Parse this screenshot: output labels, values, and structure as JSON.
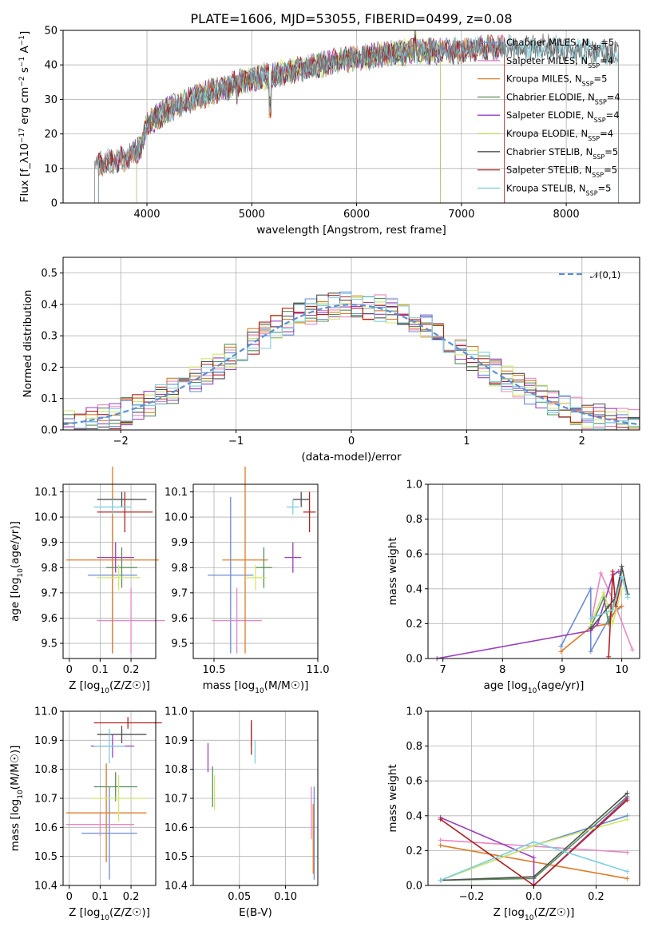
{
  "figure_title": "PLATE=1606, MJD=53055, FIBERID=0499, z=0.08",
  "colors": {
    "Chabrier MILES": "#6a8bd8",
    "Salpeter MILES": "#e887c2",
    "Kroupa MILES": "#e07b27",
    "Chabrier ELODIE": "#5a8f5a",
    "Salpeter ELODIE": "#9b3fbf",
    "Kroupa ELODIE": "#cfe86a",
    "Chabrier STELIB": "#505050",
    "Salpeter STELIB": "#b22222",
    "Kroupa STELIB": "#7fd0e0",
    "normal": "#5b8fd6"
  },
  "chart_data": [
    {
      "id": "spectrum",
      "type": "line",
      "title": "PLATE=1606, MJD=53055, FIBERID=0499, z=0.08",
      "xlabel": "wavelength [Angstrom, rest frame]",
      "ylabel": "Flux [f_λ 10^-17 erg cm^-2 s^-1 A^-1]",
      "xlim": [
        3200,
        8700
      ],
      "ylim": [
        0,
        50
      ],
      "xticks": [
        4000,
        5000,
        6000,
        7000,
        8000
      ],
      "yticks": [
        0,
        10,
        20,
        30,
        40,
        50
      ],
      "legend_position": "right",
      "legend": [
        "Chabrier MILES, N_SSP=5",
        "Salpeter MILES, N_SSP=4",
        "Kroupa MILES, N_SSP=5",
        "Chabrier ELODIE, N_SSP=4",
        "Salpeter ELODIE, N_SSP=4",
        "Kroupa ELODIE, N_SSP=4",
        "Chabrier STELIB, N_SSP=5",
        "Salpeter STELIB, N_SSP=5",
        "Kroupa STELIB, N_SSP=5"
      ],
      "continuum": [
        [
          3500,
          11
        ],
        [
          3800,
          13
        ],
        [
          3950,
          16
        ],
        [
          4000,
          23
        ],
        [
          4200,
          27
        ],
        [
          4500,
          31
        ],
        [
          4800,
          34
        ],
        [
          5000,
          36
        ],
        [
          5200,
          37
        ],
        [
          5500,
          39
        ],
        [
          5800,
          41
        ],
        [
          6000,
          42
        ],
        [
          6300,
          43
        ],
        [
          6600,
          44
        ],
        [
          6900,
          44
        ],
        [
          7200,
          45
        ],
        [
          7500,
          45
        ],
        [
          7800,
          45
        ],
        [
          8200,
          44
        ],
        [
          8500,
          43
        ]
      ],
      "coverage": {
        "Chabrier MILES": [
          3540,
          7410
        ],
        "Salpeter MILES": [
          3540,
          7410
        ],
        "Kroupa MILES": [
          3540,
          7410
        ],
        "Chabrier ELODIE": [
          3900,
          6800
        ],
        "Salpeter ELODIE": [
          3900,
          6800
        ],
        "Kroupa ELODIE": [
          3900,
          6800
        ],
        "Chabrier STELIB": [
          3540,
          8500
        ],
        "Salpeter STELIB": [
          3540,
          7410
        ],
        "Kroupa STELIB": [
          3540,
          8500
        ]
      },
      "data_line": [
        3500,
        8500
      ]
    },
    {
      "id": "residuals",
      "type": "histogram",
      "xlabel": "(data-model)/error",
      "ylabel": "Normed distribution",
      "xlim": [
        -2.5,
        2.5
      ],
      "ylim": [
        0,
        0.55
      ],
      "xticks": [
        -2,
        -1,
        0,
        1,
        2
      ],
      "yticks": [
        0.0,
        0.1,
        0.2,
        0.3,
        0.4,
        0.5
      ],
      "legend": [
        "𝒩(0,1)"
      ],
      "legend_position": "upper right",
      "bin_width": 0.1,
      "series": [
        {
          "name": "Chabrier MILES",
          "jitter_seed": 1
        },
        {
          "name": "Salpeter MILES",
          "jitter_seed": 2
        },
        {
          "name": "Kroupa MILES",
          "jitter_seed": 3
        },
        {
          "name": "Chabrier ELODIE",
          "jitter_seed": 4
        },
        {
          "name": "Salpeter ELODIE",
          "jitter_seed": 5
        },
        {
          "name": "Kroupa ELODIE",
          "jitter_seed": 6
        },
        {
          "name": "Chabrier STELIB",
          "jitter_seed": 7
        },
        {
          "name": "Salpeter STELIB",
          "jitter_seed": 8
        },
        {
          "name": "Kroupa STELIB",
          "jitter_seed": 9
        }
      ]
    },
    {
      "id": "age_vs_Z",
      "type": "errorbar",
      "xlabel": "Z [log10(Z/Z☉)]",
      "ylabel": "age [log10(age/yr)]",
      "xlim": [
        -0.02,
        0.28
      ],
      "ylim": [
        9.44,
        10.13
      ],
      "xticks": [
        0.0,
        0.1,
        0.2
      ],
      "yticks": [
        9.5,
        9.6,
        9.7,
        9.8,
        9.9,
        10.0,
        10.1
      ],
      "points": [
        {
          "s": "Chabrier MILES",
          "x": 0.14,
          "xerr": 0.08,
          "y": 9.77,
          "yerr": 0.31
        },
        {
          "s": "Salpeter MILES",
          "x": 0.2,
          "xerr": 0.11,
          "y": 9.59,
          "yerr": 0.13
        },
        {
          "s": "Kroupa MILES",
          "x": 0.14,
          "xerr": 0.15,
          "y": 9.83,
          "yerr": 0.37
        },
        {
          "s": "Chabrier ELODIE",
          "x": 0.17,
          "xerr": 0.05,
          "y": 9.8,
          "yerr": 0.08
        },
        {
          "s": "Salpeter ELODIE",
          "x": 0.15,
          "xerr": 0.06,
          "y": 9.84,
          "yerr": 0.06
        },
        {
          "s": "Kroupa ELODIE",
          "x": 0.16,
          "xerr": 0.07,
          "y": 9.76,
          "yerr": 0.05
        },
        {
          "s": "Chabrier STELIB",
          "x": 0.17,
          "xerr": 0.08,
          "y": 10.07,
          "yerr": 0.03
        },
        {
          "s": "Salpeter STELIB",
          "x": 0.18,
          "xerr": 0.09,
          "y": 10.02,
          "yerr": 0.08
        },
        {
          "s": "Kroupa STELIB",
          "x": 0.14,
          "xerr": 0.06,
          "y": 10.04,
          "yerr": 0.03
        }
      ]
    },
    {
      "id": "age_vs_mass",
      "type": "errorbar",
      "xlabel": "mass [log10(M/M☉)]",
      "ylabel": "",
      "xlim": [
        10.4,
        11.0
      ],
      "ylim": [
        9.44,
        10.13
      ],
      "xticks": [
        10.5,
        11.0
      ],
      "xticklabels": [
        "10.5",
        "11.0"
      ],
      "yticks": [
        9.5,
        9.6,
        9.7,
        9.8,
        9.9,
        10.0,
        10.1
      ],
      "points": [
        {
          "s": "Chabrier MILES",
          "x": 10.58,
          "xerr": 0.11,
          "y": 9.77,
          "yerr": 0.31
        },
        {
          "s": "Salpeter MILES",
          "x": 10.61,
          "xerr": 0.12,
          "y": 9.59,
          "yerr": 0.13
        },
        {
          "s": "Kroupa MILES",
          "x": 10.65,
          "xerr": 0.11,
          "y": 9.83,
          "yerr": 0.37
        },
        {
          "s": "Chabrier ELODIE",
          "x": 10.74,
          "xerr": 0.04,
          "y": 9.8,
          "yerr": 0.08
        },
        {
          "s": "Salpeter ELODIE",
          "x": 10.88,
          "xerr": 0.04,
          "y": 9.84,
          "yerr": 0.06
        },
        {
          "s": "Kroupa ELODIE",
          "x": 10.7,
          "xerr": 0.05,
          "y": 9.76,
          "yerr": 0.05
        },
        {
          "s": "Chabrier STELIB",
          "x": 10.92,
          "xerr": 0.04,
          "y": 10.07,
          "yerr": 0.03
        },
        {
          "s": "Salpeter STELIB",
          "x": 10.96,
          "xerr": 0.03,
          "y": 10.02,
          "yerr": 0.08
        },
        {
          "s": "Kroupa STELIB",
          "x": 10.88,
          "xerr": 0.03,
          "y": 10.04,
          "yerr": 0.03
        }
      ]
    },
    {
      "id": "massweight_vs_age",
      "type": "line",
      "xlabel": "age [log10(age/yr)]",
      "ylabel": "mass weight",
      "xlim": [
        6.75,
        10.3
      ],
      "ylim": [
        0,
        1.0
      ],
      "xticks": [
        7,
        8,
        9,
        10
      ],
      "yticks": [
        0.0,
        0.2,
        0.4,
        0.6,
        0.8,
        1.0
      ],
      "series": [
        {
          "name": "Chabrier MILES",
          "x": [
            8.98,
            9.48,
            9.48,
            9.8,
            10.0
          ],
          "y": [
            0.07,
            0.4,
            0.04,
            0.24,
            0.3
          ]
        },
        {
          "name": "Salpeter MILES",
          "x": [
            9.48,
            9.65,
            9.9,
            10.18
          ],
          "y": [
            0.2,
            0.49,
            0.3,
            0.05
          ]
        },
        {
          "name": "Kroupa MILES",
          "x": [
            8.98,
            9.48,
            9.78,
            9.9,
            10.0
          ],
          "y": [
            0.04,
            0.18,
            0.2,
            0.28,
            0.3
          ]
        },
        {
          "name": "Chabrier ELODIE",
          "x": [
            9.48,
            9.7,
            9.78,
            10.0
          ],
          "y": [
            0.18,
            0.35,
            0.2,
            0.5
          ]
        },
        {
          "name": "Salpeter ELODIE",
          "x": [
            6.9,
            9.48,
            9.6,
            9.85,
            9.95
          ],
          "y": [
            0.0,
            0.16,
            0.2,
            0.48,
            0.5
          ]
        },
        {
          "name": "Kroupa ELODIE",
          "x": [
            9.48,
            9.7,
            9.85,
            10.0
          ],
          "y": [
            0.2,
            0.38,
            0.2,
            0.4
          ]
        },
        {
          "name": "Chabrier STELIB",
          "x": [
            9.48,
            9.78,
            9.9,
            10.0,
            10.1
          ],
          "y": [
            0.17,
            0.3,
            0.35,
            0.53,
            0.37
          ]
        },
        {
          "name": "Salpeter STELIB",
          "x": [
            9.78,
            9.85,
            9.9,
            10.0
          ],
          "y": [
            0.01,
            0.5,
            0.3,
            0.45
          ]
        },
        {
          "name": "Kroupa STELIB",
          "x": [
            9.48,
            9.85,
            10.0,
            10.1
          ],
          "y": [
            0.23,
            0.28,
            0.47,
            0.35
          ]
        }
      ]
    },
    {
      "id": "mass_vs_Z",
      "type": "errorbar",
      "xlabel": "Z [log10(Z/Z☉)]",
      "ylabel": "mass [log10(M/M☉)]",
      "xlim": [
        -0.02,
        0.28
      ],
      "ylim": [
        10.4,
        11.0
      ],
      "xticks": [
        0.0,
        0.1,
        0.2
      ],
      "yticks": [
        10.4,
        10.5,
        10.6,
        10.7,
        10.8,
        10.9,
        11.0
      ],
      "points": [
        {
          "s": "Chabrier MILES",
          "x": 0.13,
          "xerr": 0.09,
          "y": 10.58,
          "yerr": 0.16
        },
        {
          "s": "Salpeter MILES",
          "x": 0.1,
          "xerr": 0.11,
          "y": 10.61,
          "yerr": 0.04
        },
        {
          "s": "Kroupa MILES",
          "x": 0.12,
          "xerr": 0.13,
          "y": 10.65,
          "yerr": 0.17
        },
        {
          "s": "Chabrier ELODIE",
          "x": 0.15,
          "xerr": 0.07,
          "y": 10.74,
          "yerr": 0.05
        },
        {
          "s": "Salpeter ELODIE",
          "x": 0.14,
          "xerr": 0.07,
          "y": 10.88,
          "yerr": 0.04
        },
        {
          "s": "Kroupa ELODIE",
          "x": 0.16,
          "xerr": 0.09,
          "y": 10.7,
          "yerr": 0.08
        },
        {
          "s": "Chabrier STELIB",
          "x": 0.17,
          "xerr": 0.08,
          "y": 10.92,
          "yerr": 0.03
        },
        {
          "s": "Salpeter STELIB",
          "x": 0.19,
          "xerr": 0.11,
          "y": 10.96,
          "yerr": 0.02
        },
        {
          "s": "Kroupa STELIB",
          "x": 0.13,
          "xerr": 0.05,
          "y": 10.88,
          "yerr": 0.06
        }
      ]
    },
    {
      "id": "mass_vs_ebv",
      "type": "errorbar",
      "xlabel": "E(B-V)",
      "ylabel": "",
      "xlim": [
        0.0,
        0.135
      ],
      "ylim": [
        10.4,
        11.0
      ],
      "xticks": [
        0.05,
        0.1
      ],
      "xticklabels": [
        "0.05",
        "0.10"
      ],
      "yticks": [
        10.4,
        10.5,
        10.6,
        10.7,
        10.8,
        10.9,
        11.0
      ],
      "points": [
        {
          "s": "Chabrier MILES",
          "x": 0.131,
          "xerr": 0.0,
          "y": 10.58,
          "yerr": 0.16
        },
        {
          "s": "Salpeter MILES",
          "x": 0.128,
          "xerr": 0.0,
          "y": 10.65,
          "yerr": 0.09
        },
        {
          "s": "Kroupa MILES",
          "x": 0.13,
          "xerr": 0.0,
          "y": 10.56,
          "yerr": 0.12
        },
        {
          "s": "Chabrier ELODIE",
          "x": 0.021,
          "xerr": 0.0,
          "y": 10.74,
          "yerr": 0.07
        },
        {
          "s": "Salpeter ELODIE",
          "x": 0.016,
          "xerr": 0.0,
          "y": 10.84,
          "yerr": 0.05
        },
        {
          "s": "Kroupa ELODIE",
          "x": 0.023,
          "xerr": 0.0,
          "y": 10.72,
          "yerr": 0.06
        },
        {
          "s": "Chabrier STELIB",
          "x": 0.063,
          "xerr": 0.0,
          "y": 10.92,
          "yerr": 0.04
        },
        {
          "s": "Salpeter STELIB",
          "x": 0.063,
          "xerr": 0.0,
          "y": 10.91,
          "yerr": 0.06
        },
        {
          "s": "Kroupa STELIB",
          "x": 0.067,
          "xerr": 0.0,
          "y": 10.86,
          "yerr": 0.04
        }
      ]
    },
    {
      "id": "massweight_vs_Z",
      "type": "line",
      "xlabel": "Z [log10(Z/Z☉)]",
      "ylabel": "mass weight",
      "xlim": [
        -0.34,
        0.34
      ],
      "ylim": [
        0,
        1.0
      ],
      "xticks": [
        -0.2,
        0.0,
        0.2
      ],
      "xticklabels": [
        "−0.2",
        "0.0",
        "0.2"
      ],
      "yticks": [
        0.0,
        0.2,
        0.4,
        0.6,
        0.8,
        1.0
      ],
      "series": [
        {
          "name": "Chabrier MILES",
          "x": [
            -0.3,
            0.0,
            0.3
          ],
          "y": [
            0.03,
            0.23,
            0.4
          ]
        },
        {
          "name": "Salpeter MILES",
          "x": [
            -0.3,
            0.3
          ],
          "y": [
            0.26,
            0.19
          ]
        },
        {
          "name": "Kroupa MILES",
          "x": [
            -0.3,
            0.3
          ],
          "y": [
            0.23,
            0.04
          ]
        },
        {
          "name": "Chabrier ELODIE",
          "x": [
            -0.3,
            0.0,
            0.3
          ],
          "y": [
            0.03,
            0.04,
            0.51
          ]
        },
        {
          "name": "Salpeter ELODIE",
          "x": [
            -0.3,
            0.0,
            0.0,
            0.3
          ],
          "y": [
            0.39,
            0.16,
            0.0,
            0.5
          ]
        },
        {
          "name": "Kroupa ELODIE",
          "x": [
            -0.3,
            0.0,
            0.3
          ],
          "y": [
            0.03,
            0.23,
            0.38
          ]
        },
        {
          "name": "Chabrier STELIB",
          "x": [
            -0.3,
            0.0,
            0.3
          ],
          "y": [
            0.03,
            0.05,
            0.53
          ]
        },
        {
          "name": "Salpeter STELIB",
          "x": [
            -0.3,
            0.0,
            0.3
          ],
          "y": [
            0.38,
            0.0,
            0.49
          ]
        },
        {
          "name": "Kroupa STELIB",
          "x": [
            -0.3,
            0.0,
            0.3
          ],
          "y": [
            0.03,
            0.25,
            0.08
          ]
        }
      ]
    }
  ]
}
